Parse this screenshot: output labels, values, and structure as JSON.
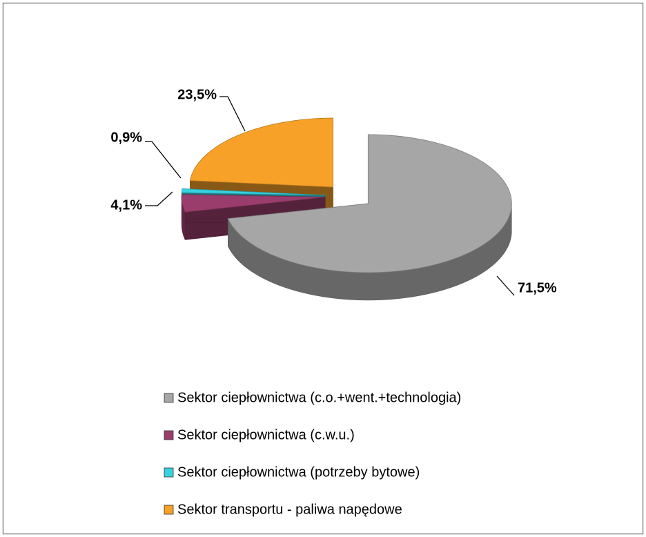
{
  "chart_data": {
    "type": "pie",
    "categories": [
      "Sektor ciepłownictwa (c.o.+went.+technologia)",
      "Sektor ciepłownictwa (c.w.u.)",
      "Sektor ciepłownictwa (potrzeby bytowe)",
      "Sektor transportu - paliwa napędowe"
    ],
    "values": [
      71.5,
      4.1,
      0.9,
      23.5
    ],
    "value_labels": [
      "71,5%",
      "4,1%",
      "0,9%",
      "23,5%"
    ],
    "colors": [
      "#a6a6a6",
      "#9a3d6c",
      "#36d3df",
      "#f7a128"
    ]
  }
}
